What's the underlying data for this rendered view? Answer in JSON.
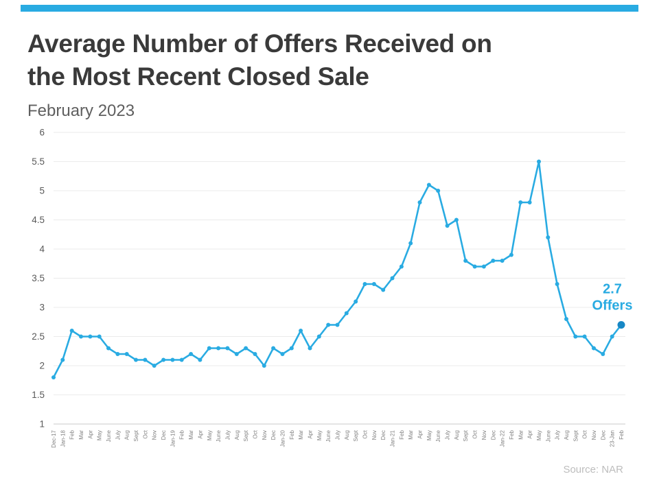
{
  "page": {
    "title_lines": [
      "Average Number of Offers Received on",
      "the Most Recent Closed Sale"
    ],
    "subtitle": "February 2023",
    "source": "Source: NAR",
    "accent_color": "#29ABE2"
  },
  "chart_data": {
    "type": "line",
    "title": "Average Number of Offers Received on the Most Recent Closed Sale",
    "subtitle": "February 2023",
    "xlabel": "",
    "ylabel": "",
    "ylim": [
      1,
      6
    ],
    "y_ticks": [
      1,
      1.5,
      2,
      2.5,
      3,
      3.5,
      4,
      4.5,
      5,
      5.5,
      6
    ],
    "grid": true,
    "legend": "none",
    "line_color": "#29ABE2",
    "last_marker_color": "#1787c5",
    "annotation": {
      "label_line1": "2.7",
      "label_line2": "Offers",
      "index": 62
    },
    "source": "Source: NAR",
    "categories": [
      "Dec-17",
      "Jan-18",
      "Feb",
      "Mar",
      "Apr",
      "May",
      "June",
      "July",
      "Aug",
      "Sept",
      "Oct",
      "Nov",
      "Dec",
      "Jan-19",
      "Feb",
      "Mar",
      "Apr",
      "May",
      "June",
      "July",
      "Aug",
      "Sept",
      "Oct",
      "Nov",
      "Dec",
      "Jan-20",
      "Feb",
      "Mar",
      "Apr",
      "May",
      "June",
      "July",
      "Aug",
      "Sept",
      "Oct",
      "Nov",
      "Dec",
      "Jan-21",
      "Feb",
      "Mar",
      "Apr",
      "May",
      "June",
      "July",
      "Aug",
      "Sept",
      "Oct",
      "Nov",
      "Dec",
      "Jan-22",
      "Feb",
      "Mar",
      "Apr",
      "May",
      "June",
      "July",
      "Aug",
      "Sept",
      "Oct",
      "Nov",
      "Dec",
      "23-Jan",
      "Feb"
    ],
    "values": [
      1.8,
      2.1,
      2.6,
      2.5,
      2.5,
      2.5,
      2.3,
      2.2,
      2.2,
      2.1,
      2.1,
      2.0,
      2.1,
      2.1,
      2.1,
      2.2,
      2.1,
      2.3,
      2.3,
      2.3,
      2.2,
      2.3,
      2.2,
      2.0,
      2.3,
      2.2,
      2.3,
      2.6,
      2.3,
      2.5,
      2.7,
      2.7,
      2.9,
      3.1,
      3.4,
      3.4,
      3.3,
      3.5,
      3.7,
      4.1,
      4.8,
      5.1,
      5.0,
      4.4,
      4.5,
      3.8,
      3.7,
      3.7,
      3.8,
      3.8,
      3.9,
      4.8,
      4.8,
      5.5,
      4.2,
      3.4,
      2.8,
      2.5,
      2.5,
      2.3,
      2.2,
      2.5,
      2.7
    ]
  }
}
